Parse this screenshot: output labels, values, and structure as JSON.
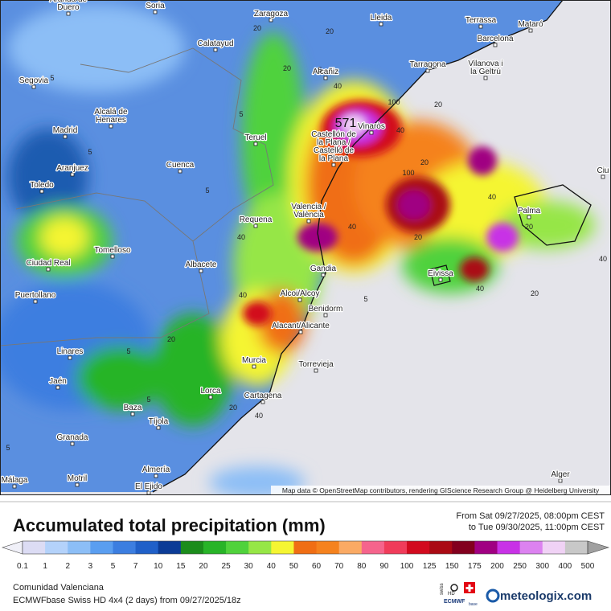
{
  "map": {
    "cities": [
      "Aranda de Duero",
      "Soria",
      "Zaragoza",
      "Lleida",
      "Terrassa",
      "Mataró",
      "Calatayud",
      "Barcelona",
      "Tarragona",
      "Segovia",
      "Alcañiz",
      "Vilanova i la Geltrú",
      "Alcalá de Henares",
      "Madrid",
      "Vinaròs",
      "Teruel",
      "Castellón de la Plana / Castelló de la Plana",
      "Aranjuez",
      "Cuenca",
      "Toledo",
      "Valencia / València",
      "Palma",
      "Requena",
      "Tomelloso",
      "Ciudad Real",
      "Albacete",
      "Eivissa",
      "Gandia",
      "Puertollano",
      "Alcoi/Alcoy",
      "Benidorm",
      "Alacant/Alicante",
      "Linares",
      "Murcia",
      "Torrevieja",
      "Jaén",
      "Lorca",
      "Cartagena",
      "Baza",
      "Tíjola",
      "Granada",
      "Almería",
      "Motril",
      "El Ejido",
      "Málaga",
      "Alger",
      "Ciu"
    ],
    "max_label": "571",
    "contour_labels": [
      "5",
      "5",
      "5",
      "5",
      "20",
      "20",
      "20",
      "40",
      "40",
      "40",
      "40",
      "100",
      "100",
      "20",
      "20",
      "40",
      "40",
      "20",
      "5",
      "5",
      "20",
      "40",
      "40",
      "20",
      "5",
      "5",
      "40",
      "20",
      "5",
      "20"
    ],
    "attribution": "Map data © OpenStreetMap contributors, rendering GIScience Research Group @ Heidelberg University"
  },
  "legend": {
    "title": "Accumulated total precipitation (mm)",
    "period": [
      "From Sat 09/27/2025, 08:00pm CEST",
      "to Tue 09/30/2025, 11:00pm CEST"
    ],
    "ticks": [
      0.1,
      1,
      2,
      3,
      5,
      7,
      10,
      15,
      20,
      25,
      30,
      40,
      50,
      60,
      70,
      80,
      90,
      100,
      125,
      150,
      175,
      200,
      250,
      300,
      400,
      500
    ],
    "colors": [
      "#f0f0f8",
      "#dcdcf4",
      "#b4d2fa",
      "#8cbef6",
      "#5a9ef0",
      "#3c7ee0",
      "#2060c8",
      "#0c3c96",
      "#1c8c1c",
      "#28b428",
      "#50d23c",
      "#96e646",
      "#f5f532",
      "#f06e14",
      "#f5821e",
      "#faaa64",
      "#f5648c",
      "#f03c5a",
      "#d20a1e",
      "#aa0a14",
      "#82001e",
      "#a00082",
      "#c832e6",
      "#dc82f0",
      "#f0d2f5",
      "#c8c8c8",
      "#a0a0a0"
    ]
  },
  "footer": {
    "region": "Comunidad Valenciana",
    "model": "ECMWFbase Swiss HD 4x4 (2 days) from 09/27/2025/18z",
    "badge": [
      "swiss",
      "HD",
      "ECMWF",
      "base"
    ],
    "brand": "meteologix.com"
  }
}
